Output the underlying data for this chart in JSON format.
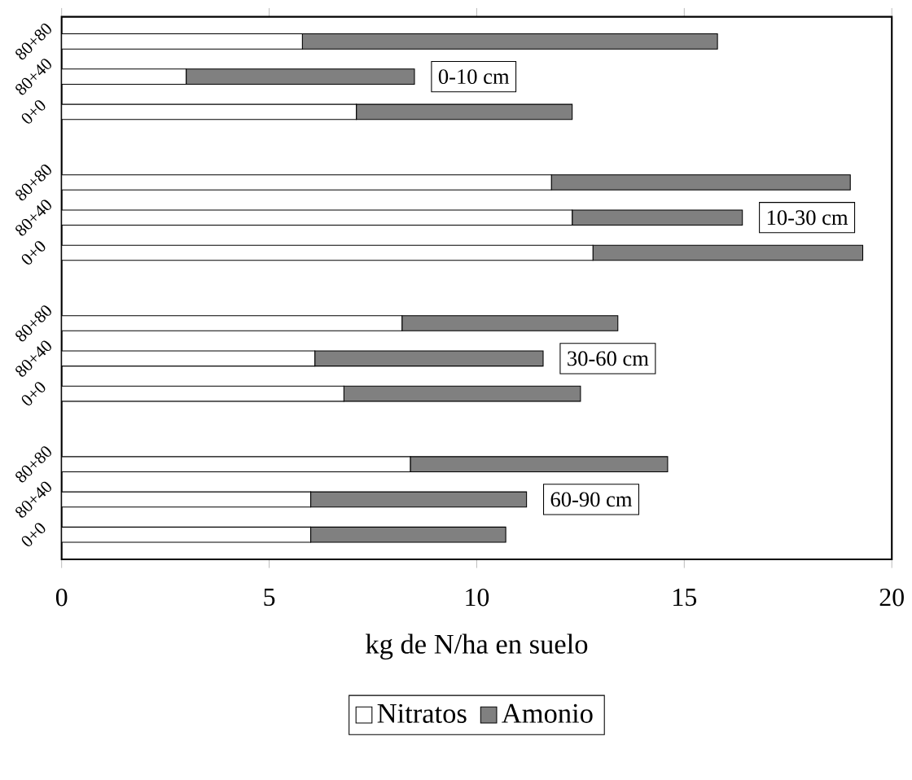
{
  "chart_data": {
    "type": "bar",
    "orientation": "horizontal",
    "stacked": true,
    "xlabel": "kg de N/ha en suelo",
    "categories": [
      "80+80",
      "80+40",
      "0+0",
      null,
      "80+80",
      "80+40",
      "0+0",
      null,
      "80+80",
      "80+40",
      "0+0",
      null,
      "80+80",
      "80+40",
      "0+0"
    ],
    "series": [
      {
        "name": "Nitratos",
        "color": "#ffffff",
        "values": [
          5.8,
          3.0,
          7.1,
          null,
          11.8,
          12.3,
          12.8,
          null,
          8.2,
          6.1,
          6.8,
          null,
          8.4,
          6.0,
          6.0
        ]
      },
      {
        "name": "Amonio",
        "color": "#808080",
        "values": [
          10.0,
          5.5,
          5.2,
          null,
          7.2,
          4.1,
          6.5,
          null,
          5.2,
          5.5,
          5.7,
          null,
          6.2,
          5.2,
          4.7
        ]
      }
    ],
    "annotations": [
      "0-10 cm",
      "10-30 cm",
      "30-60 cm",
      "60-90 cm"
    ],
    "xlim": [
      0,
      20
    ],
    "xticks": [
      0,
      5,
      10,
      15,
      20
    ],
    "legend": "bottom"
  }
}
